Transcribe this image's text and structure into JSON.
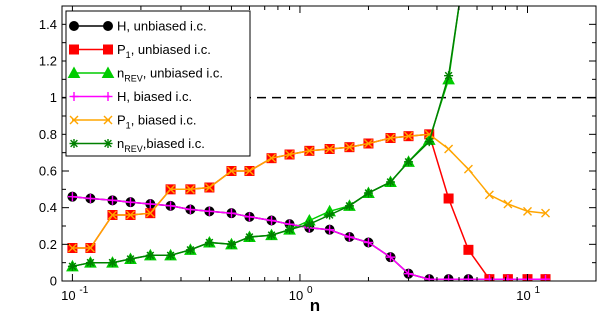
{
  "chart_data": {
    "type": "line",
    "xlabel": "n",
    "ylabel": "",
    "xscale": "log",
    "xlim": [
      0.09,
      20
    ],
    "ylim": [
      0,
      1.5
    ],
    "x_tick_labels": [
      {
        "base": "10",
        "exp": "-1"
      },
      {
        "base": "10",
        "exp": "0"
      },
      {
        "base": "10",
        "exp": "1"
      }
    ],
    "y_ticks": [
      0,
      0.2,
      0.4,
      0.6,
      0.8,
      1,
      1.2,
      1.4
    ],
    "y_tick_labels": [
      "0",
      "0.2",
      "0.4",
      "0.6",
      "0.8",
      "1",
      "1.2",
      "1.4"
    ],
    "reference_line": {
      "y": 1,
      "style": "dashed"
    },
    "legend_position": "top-left",
    "series": [
      {
        "name": "H, unbiased i.c.",
        "color": "#000000",
        "marker": "circle",
        "x": [
          0.1,
          0.12,
          0.15,
          0.18,
          0.22,
          0.27,
          0.33,
          0.4,
          0.5,
          0.6,
          0.75,
          0.9,
          1.1,
          1.35,
          1.65,
          2.0,
          2.5,
          3.0,
          3.7,
          4.5,
          5.5,
          6.8,
          8.2,
          10.0,
          12.0
        ],
        "y": [
          0.46,
          0.45,
          0.44,
          0.43,
          0.42,
          0.41,
          0.39,
          0.38,
          0.37,
          0.35,
          0.33,
          0.31,
          0.29,
          0.28,
          0.24,
          0.21,
          0.13,
          0.04,
          0.01,
          0.01,
          0.01,
          0.01,
          0.01,
          0.01,
          0.01
        ]
      },
      {
        "name": "P_1, unbiased i.c.",
        "color": "#ff0000",
        "marker": "square",
        "x": [
          0.1,
          0.12,
          0.15,
          0.18,
          0.22,
          0.27,
          0.33,
          0.4,
          0.5,
          0.6,
          0.75,
          0.9,
          1.1,
          1.35,
          1.65,
          2.0,
          2.5,
          3.0,
          3.7,
          4.5,
          5.5,
          6.8,
          8.2,
          10.0,
          12.0
        ],
        "y": [
          0.18,
          0.18,
          0.36,
          0.36,
          0.37,
          0.5,
          0.5,
          0.51,
          0.6,
          0.6,
          0.67,
          0.69,
          0.71,
          0.72,
          0.73,
          0.75,
          0.78,
          0.79,
          0.8,
          0.45,
          0.17,
          0.01,
          0.01,
          0.01,
          0.01
        ]
      },
      {
        "name": "n_REV, unbiased i.c.",
        "color": "#00cc00",
        "marker": "triangle",
        "x": [
          0.1,
          0.12,
          0.15,
          0.18,
          0.22,
          0.27,
          0.33,
          0.4,
          0.5,
          0.6,
          0.75,
          0.9,
          1.1,
          1.35,
          1.65,
          2.0,
          2.5,
          3.0,
          3.7,
          4.5,
          5.0
        ],
        "y": [
          0.08,
          0.1,
          0.1,
          0.12,
          0.14,
          0.14,
          0.17,
          0.21,
          0.2,
          0.24,
          0.25,
          0.28,
          0.33,
          0.38,
          0.41,
          0.48,
          0.54,
          0.65,
          0.77,
          1.1,
          1.5
        ]
      },
      {
        "name": "H, biased i.c.",
        "color": "#ff00ff",
        "marker": "plus",
        "x": [
          0.1,
          0.12,
          0.15,
          0.18,
          0.22,
          0.27,
          0.33,
          0.4,
          0.5,
          0.6,
          0.75,
          0.9,
          1.1,
          1.35,
          1.65,
          2.0,
          2.5,
          3.0,
          3.7,
          4.5,
          5.5,
          6.8,
          8.2,
          10.0,
          12.0
        ],
        "y": [
          0.46,
          0.45,
          0.44,
          0.43,
          0.42,
          0.41,
          0.39,
          0.38,
          0.37,
          0.35,
          0.33,
          0.31,
          0.29,
          0.28,
          0.24,
          0.21,
          0.13,
          0.04,
          0.01,
          0.01,
          0.01,
          0.01,
          0.01,
          0.01,
          0.01
        ]
      },
      {
        "name": "P_1, biased i.c.",
        "color": "#ffa500",
        "marker": "x",
        "x": [
          0.1,
          0.12,
          0.15,
          0.18,
          0.22,
          0.27,
          0.33,
          0.4,
          0.5,
          0.6,
          0.75,
          0.9,
          1.1,
          1.35,
          1.65,
          2.0,
          2.5,
          3.0,
          3.7,
          4.5,
          5.5,
          6.8,
          8.2,
          10.0,
          12.0
        ],
        "y": [
          0.18,
          0.18,
          0.36,
          0.36,
          0.37,
          0.5,
          0.5,
          0.51,
          0.6,
          0.6,
          0.67,
          0.69,
          0.71,
          0.72,
          0.73,
          0.75,
          0.78,
          0.79,
          0.8,
          0.72,
          0.61,
          0.47,
          0.42,
          0.38,
          0.37
        ]
      },
      {
        "name": "n_REV, biased i.c.",
        "color": "#008000",
        "marker": "star",
        "x": [
          0.1,
          0.12,
          0.15,
          0.18,
          0.22,
          0.27,
          0.33,
          0.4,
          0.5,
          0.6,
          0.75,
          0.9,
          1.1,
          1.35,
          1.65,
          2.0,
          2.5,
          3.0,
          3.7,
          4.5,
          5.0
        ],
        "y": [
          0.08,
          0.1,
          0.1,
          0.12,
          0.14,
          0.14,
          0.17,
          0.21,
          0.2,
          0.24,
          0.25,
          0.28,
          0.31,
          0.36,
          0.41,
          0.48,
          0.54,
          0.65,
          0.76,
          1.12,
          1.5
        ]
      }
    ],
    "legend": [
      {
        "prefix": "H",
        "sub": "",
        "suffix": ", unbiased i.c."
      },
      {
        "prefix": "P",
        "sub": "1",
        "suffix": ", unbiased i.c."
      },
      {
        "prefix": "n",
        "sub": "REV",
        "suffix": ", unbiased i.c."
      },
      {
        "prefix": "H",
        "sub": "",
        "suffix": ", biased i.c."
      },
      {
        "prefix": "P",
        "sub": "1",
        "suffix": ", biased i.c."
      },
      {
        "prefix": "n",
        "sub": "REV",
        "suffix": ",biased i.c."
      }
    ]
  }
}
